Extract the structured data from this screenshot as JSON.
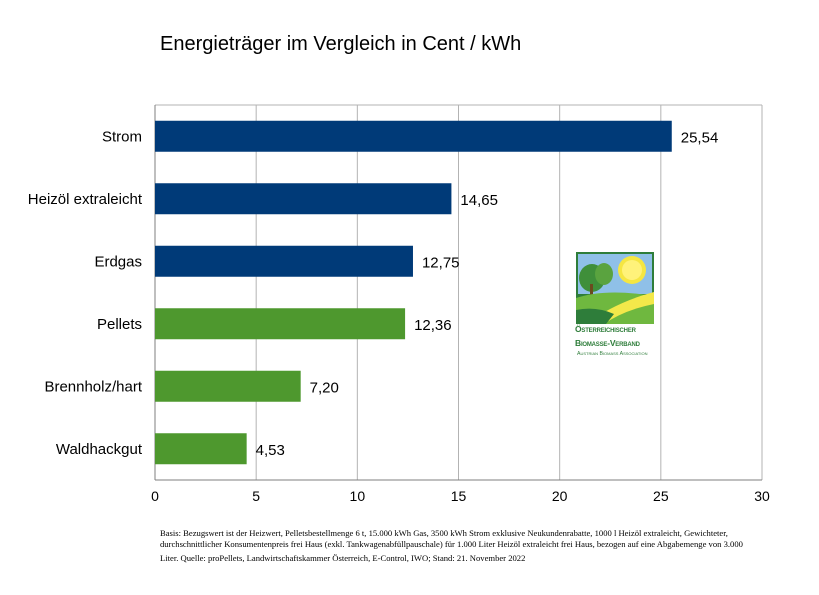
{
  "chart_data": {
    "type": "bar",
    "orientation": "horizontal",
    "title": "Energieträger im Vergleich in Cent / kWh",
    "categories": [
      "Strom",
      "Heizöl extraleicht",
      "Erdgas",
      "Pellets",
      "Brennholz/hart",
      "Waldhackgut"
    ],
    "values": [
      25.54,
      14.65,
      12.75,
      12.36,
      7.2,
      4.53
    ],
    "value_labels": [
      "25,54",
      "14,65",
      "12,75",
      "12,36",
      "7,20",
      "4,53"
    ],
    "bar_colors": [
      "#003a78",
      "#003a78",
      "#003a78",
      "#4e982e",
      "#4e982e",
      "#4e982e"
    ],
    "xlim": [
      0,
      30
    ],
    "xticks": [
      0,
      5,
      10,
      15,
      20,
      25,
      30
    ],
    "xticklabels": [
      "0",
      "5",
      "10",
      "15",
      "20",
      "25",
      "30"
    ],
    "xlabel": "",
    "ylabel": "",
    "grid": "vertical",
    "legend": "none"
  },
  "logo": {
    "line1": "Österreichischer",
    "line2": "Biomasse-Verband",
    "line3": "Austrian Biomass Association",
    "colors": {
      "green": "#2e7d3a",
      "yellow": "#f5e642",
      "sky": "#5aa0d8"
    }
  },
  "footnote": {
    "line1": "Basis: Bezugswert ist der Heizwert, Pelletsbestellmenge 6 t, 15.000 kWh Gas, 3500 kWh Strom exklusive Neukundenrabatte, 1000 l Heizöl extraleicht, Gewichteter,",
    "line2": "durchschnittlicher Konsumentenpreis frei Haus (exkl. Tankwagenabfüllpauschale) für 1.000 Liter Heizöl extraleicht frei Haus, bezogen auf eine Abgabemenge von 3.000",
    "line3": "Liter. Quelle: proPellets, Landwirtschaftskammer Österreich, E-Control, IWO; Stand: 21. November 2022"
  }
}
